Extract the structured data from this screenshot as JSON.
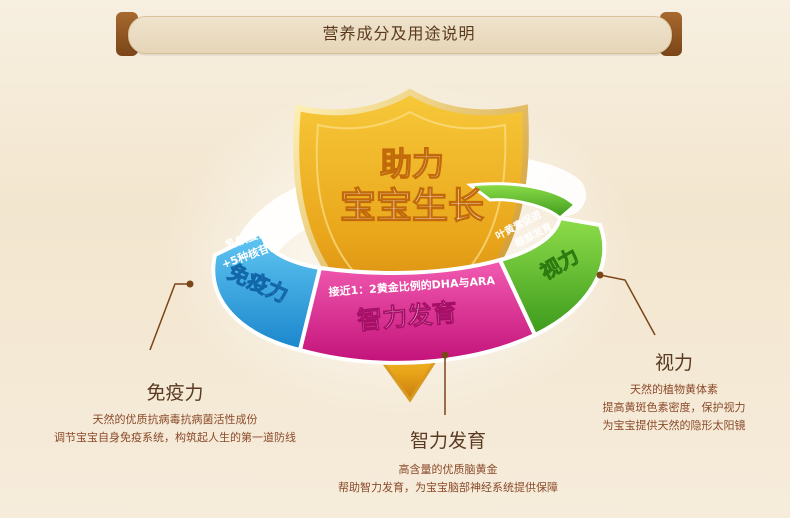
{
  "header": {
    "title": "营养成分及用途说明"
  },
  "shield": {
    "line1": "助力",
    "line2": "宝宝生长"
  },
  "ring": {
    "immunity": {
      "small_line1": "乳铁蛋白",
      "small_line2": "+5种核苷酸",
      "big": "免疫力"
    },
    "brain": {
      "small": "接近1：2黄金比例的DHA与ARA",
      "big": "智力发育"
    },
    "vision": {
      "small_line1": "叶黄素促进",
      "small_line2": "眼部发育",
      "big": "视力"
    }
  },
  "features": {
    "immunity": {
      "title": "免疫力",
      "desc1": "天然的优质抗病毒抗病菌活性成份",
      "desc2": "调节宝宝自身免疫系统，构筑起人生的第一道防线"
    },
    "brain": {
      "title": "智力发育",
      "desc1": "高含量的优质脑黄金",
      "desc2": "帮助智力发育，为宝宝脑部神经系统提供保障"
    },
    "vision": {
      "title": "视力",
      "desc1": "天然的植物黄体素",
      "desc2": "提高黄斑色素密度，保护视力",
      "desc3": "为宝宝提供天然的隐形太阳镜"
    }
  },
  "colors": {
    "blue": "#2aa3e0",
    "magenta": "#e0208c",
    "green": "#5cb82e",
    "gold": "#e9a51a",
    "brown": "#7b4518"
  }
}
